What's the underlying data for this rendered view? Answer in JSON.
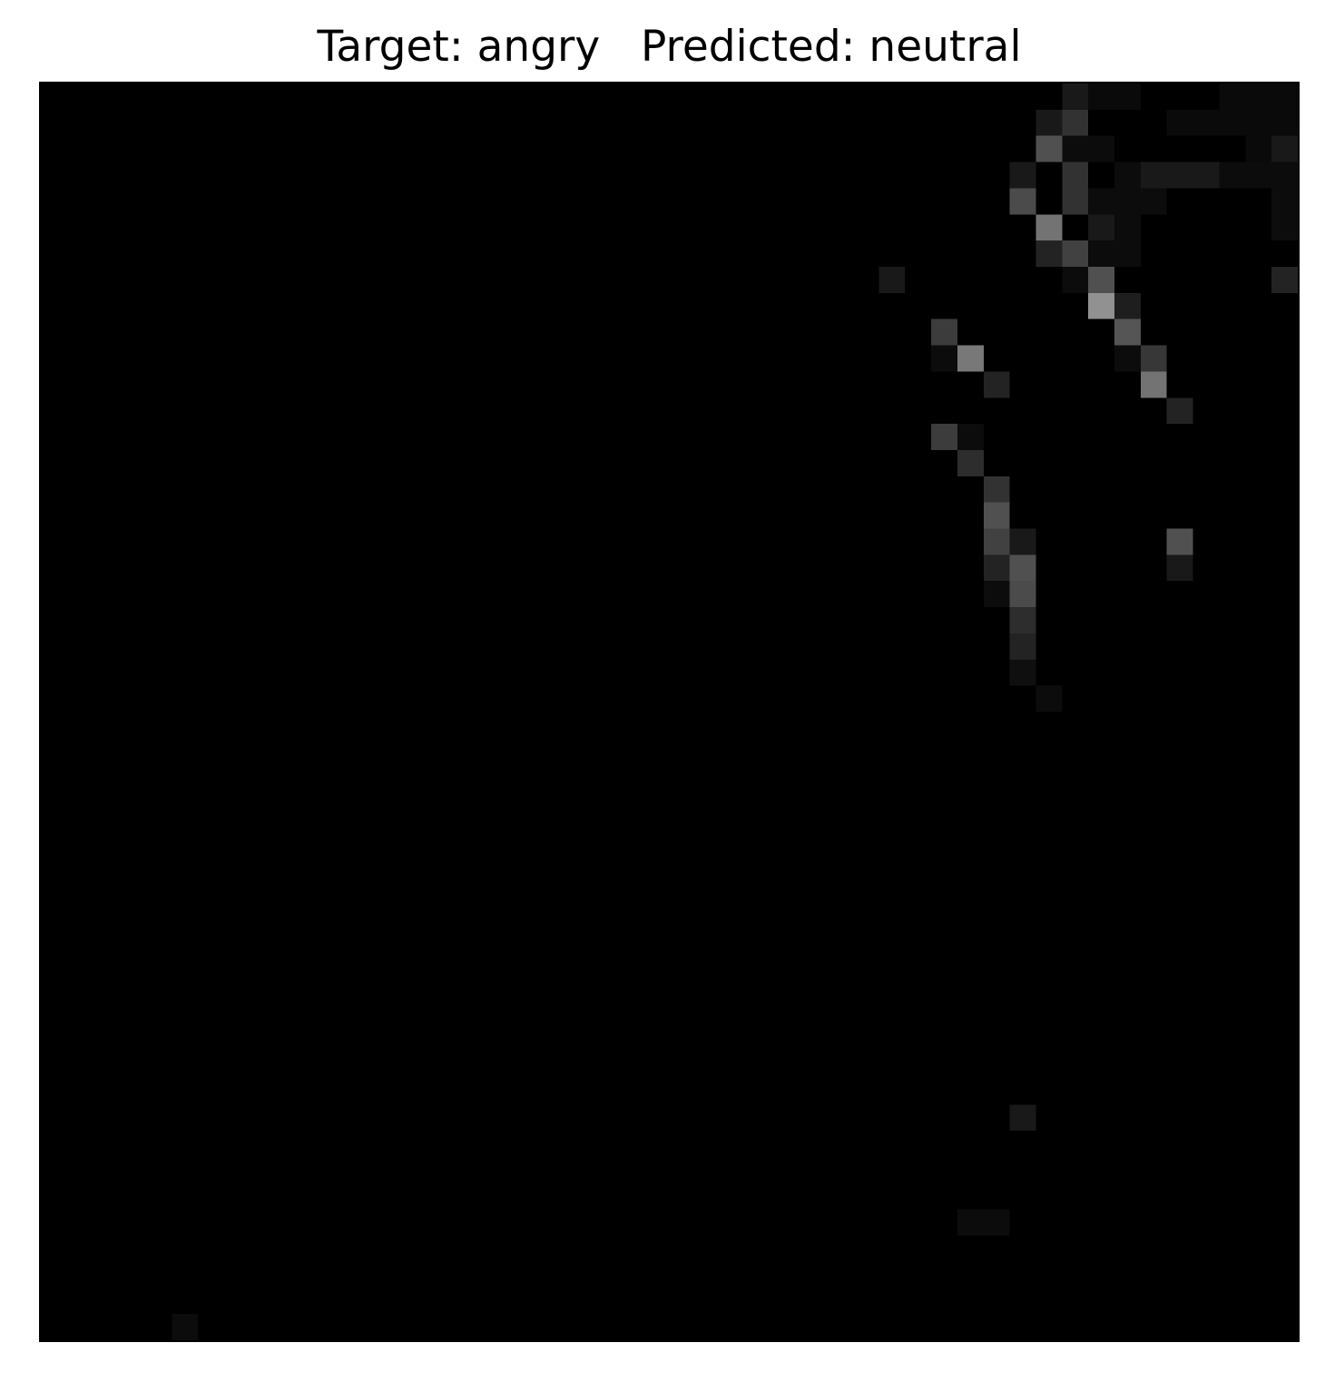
{
  "figure": {
    "title": "Target: angry   Predicted: neutral",
    "target_label": "angry",
    "predicted_label": "neutral"
  },
  "image": {
    "description_kind": "48x48 grayscale face-expression sample, nearly black",
    "grid_size": 48,
    "background_color": "#000000",
    "bright_pixels": [
      [
        0,
        39,
        25
      ],
      [
        0,
        40,
        10
      ],
      [
        0,
        41,
        10
      ],
      [
        0,
        45,
        10
      ],
      [
        0,
        46,
        10
      ],
      [
        0,
        47,
        10
      ],
      [
        1,
        38,
        25
      ],
      [
        1,
        39,
        50
      ],
      [
        1,
        43,
        10
      ],
      [
        1,
        44,
        10
      ],
      [
        1,
        45,
        10
      ],
      [
        1,
        46,
        10
      ],
      [
        1,
        47,
        10
      ],
      [
        2,
        38,
        80
      ],
      [
        2,
        39,
        12
      ],
      [
        2,
        40,
        12
      ],
      [
        2,
        46,
        10
      ],
      [
        2,
        47,
        25
      ],
      [
        3,
        37,
        25
      ],
      [
        3,
        39,
        50
      ],
      [
        3,
        41,
        12
      ],
      [
        3,
        42,
        25
      ],
      [
        3,
        43,
        25
      ],
      [
        3,
        44,
        25
      ],
      [
        3,
        45,
        12
      ],
      [
        3,
        46,
        12
      ],
      [
        3,
        47,
        12
      ],
      [
        4,
        37,
        75
      ],
      [
        4,
        39,
        50
      ],
      [
        4,
        40,
        12
      ],
      [
        4,
        41,
        12
      ],
      [
        4,
        42,
        12
      ],
      [
        4,
        47,
        12
      ],
      [
        5,
        38,
        115
      ],
      [
        5,
        40,
        25
      ],
      [
        5,
        41,
        12
      ],
      [
        5,
        47,
        12
      ],
      [
        6,
        38,
        35
      ],
      [
        6,
        39,
        65
      ],
      [
        6,
        40,
        12
      ],
      [
        6,
        41,
        12
      ],
      [
        7,
        32,
        25
      ],
      [
        7,
        39,
        12
      ],
      [
        7,
        40,
        80
      ],
      [
        7,
        47,
        35
      ],
      [
        8,
        40,
        145
      ],
      [
        8,
        41,
        30
      ],
      [
        9,
        34,
        60
      ],
      [
        9,
        41,
        85
      ],
      [
        10,
        34,
        12
      ],
      [
        10,
        35,
        120
      ],
      [
        10,
        41,
        12
      ],
      [
        10,
        42,
        55
      ],
      [
        11,
        36,
        35
      ],
      [
        11,
        42,
        115
      ],
      [
        12,
        43,
        35
      ],
      [
        13,
        34,
        60
      ],
      [
        13,
        35,
        12
      ],
      [
        14,
        35,
        45
      ],
      [
        15,
        36,
        50
      ],
      [
        16,
        36,
        80
      ],
      [
        17,
        36,
        65
      ],
      [
        17,
        37,
        25
      ],
      [
        17,
        43,
        80
      ],
      [
        18,
        36,
        35
      ],
      [
        18,
        37,
        80
      ],
      [
        18,
        43,
        25
      ],
      [
        19,
        36,
        12
      ],
      [
        19,
        37,
        75
      ],
      [
        20,
        37,
        45
      ],
      [
        21,
        37,
        35
      ],
      [
        22,
        37,
        15
      ],
      [
        23,
        38,
        12
      ],
      [
        39,
        37,
        25
      ],
      [
        43,
        35,
        12
      ],
      [
        43,
        36,
        12
      ],
      [
        47,
        5,
        12
      ]
    ]
  }
}
